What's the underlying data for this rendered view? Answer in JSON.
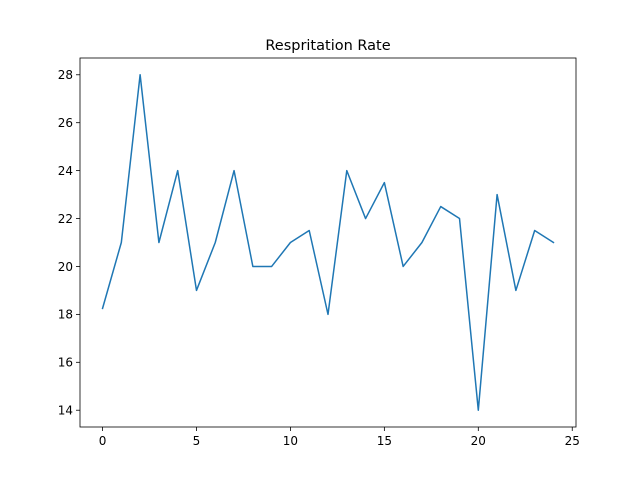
{
  "chart_data": {
    "type": "line",
    "title": "Respritation Rate",
    "xlabel": "",
    "ylabel": "",
    "xlim": [
      -1.2,
      25.2
    ],
    "ylim": [
      13.3,
      28.7
    ],
    "xticks": [
      0,
      5,
      10,
      15,
      20,
      25
    ],
    "yticks": [
      14,
      16,
      18,
      20,
      22,
      24,
      26,
      28
    ],
    "grid": false,
    "colors": {
      "line": "#1f77b4"
    },
    "series": [
      {
        "x": [
          0,
          1,
          2,
          3,
          4,
          5,
          6,
          7,
          8,
          9,
          10,
          11,
          12,
          13,
          14,
          15,
          16,
          17,
          18,
          19,
          20,
          21,
          22,
          23,
          24
        ],
        "values": [
          18.25,
          21,
          28,
          21,
          24,
          19,
          21,
          24,
          20,
          20,
          21,
          21.5,
          18,
          24,
          22,
          23.5,
          20,
          21,
          22.5,
          22,
          14,
          23,
          19,
          21.5,
          21
        ]
      }
    ]
  }
}
